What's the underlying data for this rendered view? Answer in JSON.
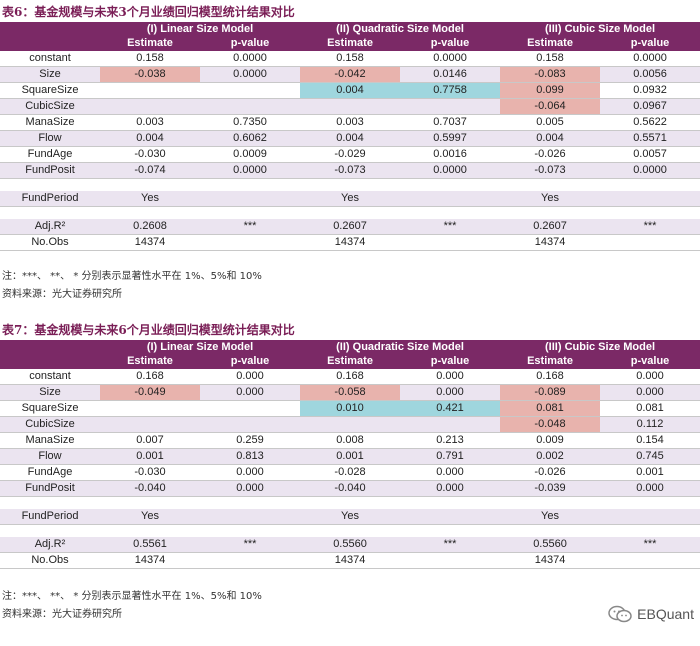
{
  "table6": {
    "title": "表6：基金规模与未来3个月业绩回归模型统计结果对比",
    "headers": [
      "(I) Linear Size Model",
      "(II) Quadratic Size Model",
      "(III) Cubic Size Model"
    ],
    "subheaders": [
      "Estimate",
      "p-value",
      "Estimate",
      "p-value",
      "Estimate",
      "p-value"
    ],
    "rows": [
      {
        "label": "constant",
        "v": [
          "0.158",
          "0.0000",
          "0.158",
          "0.0000",
          "0.158",
          "0.0000"
        ]
      },
      {
        "label": "Size",
        "v": [
          "-0.038",
          "0.0000",
          "-0.042",
          "0.0146",
          "-0.083",
          "0.0056"
        ]
      },
      {
        "label": "SquareSize",
        "v": [
          "",
          "",
          "0.004",
          "0.7758",
          "0.099",
          "0.0932"
        ]
      },
      {
        "label": "CubicSize",
        "v": [
          "",
          "",
          "",
          "",
          "-0.064",
          "0.0967"
        ]
      },
      {
        "label": "ManaSize",
        "v": [
          "0.003",
          "0.7350",
          "0.003",
          "0.7037",
          "0.005",
          "0.5622"
        ]
      },
      {
        "label": "Flow",
        "v": [
          "0.004",
          "0.6062",
          "0.004",
          "0.5997",
          "0.004",
          "0.5571"
        ]
      },
      {
        "label": "FundAge",
        "v": [
          "-0.030",
          "0.0009",
          "-0.029",
          "0.0016",
          "-0.026",
          "0.0057"
        ]
      },
      {
        "label": "FundPosit",
        "v": [
          "-0.074",
          "0.0000",
          "-0.073",
          "0.0000",
          "-0.073",
          "0.0000"
        ]
      }
    ],
    "fundperiod": {
      "label": "FundPeriod",
      "v": [
        "Yes",
        "Yes",
        "Yes"
      ]
    },
    "adjr2": {
      "label": "Adj.R²",
      "v": [
        "0.2608",
        "***",
        "0.2607",
        "***",
        "0.2607",
        "***"
      ]
    },
    "nobs": {
      "label": "No.Obs",
      "v": [
        "14374",
        "14374",
        "14374"
      ]
    },
    "note": "注：***、 **、 * 分别表示显著性水平在 1%、5%和 10%",
    "source": "资料来源：光大证券研究所"
  },
  "table7": {
    "title": "表7：基金规模与未来6个月业绩回归模型统计结果对比",
    "headers": [
      "(I) Linear Size Model",
      "(II) Quadratic Size Model",
      "(III) Cubic Size Model"
    ],
    "subheaders": [
      "Estimate",
      "p-value",
      "Estimate",
      "p-value",
      "Estimate",
      "p-value"
    ],
    "rows": [
      {
        "label": "constant",
        "v": [
          "0.168",
          "0.000",
          "0.168",
          "0.000",
          "0.168",
          "0.000"
        ]
      },
      {
        "label": "Size",
        "v": [
          "-0.049",
          "0.000",
          "-0.058",
          "0.000",
          "-0.089",
          "0.000"
        ]
      },
      {
        "label": "SquareSize",
        "v": [
          "",
          "",
          "0.010",
          "0.421",
          "0.081",
          "0.081"
        ]
      },
      {
        "label": "CubicSize",
        "v": [
          "",
          "",
          "",
          "",
          "-0.048",
          "0.112"
        ]
      },
      {
        "label": "ManaSize",
        "v": [
          "0.007",
          "0.259",
          "0.008",
          "0.213",
          "0.009",
          "0.154"
        ]
      },
      {
        "label": "Flow",
        "v": [
          "0.001",
          "0.813",
          "0.001",
          "0.791",
          "0.002",
          "0.745"
        ]
      },
      {
        "label": "FundAge",
        "v": [
          "-0.030",
          "0.000",
          "-0.028",
          "0.000",
          "-0.026",
          "0.001"
        ]
      },
      {
        "label": "FundPosit",
        "v": [
          "-0.040",
          "0.000",
          "-0.040",
          "0.000",
          "-0.039",
          "0.000"
        ]
      }
    ],
    "fundperiod": {
      "label": "FundPeriod",
      "v": [
        "Yes",
        "Yes",
        "Yes"
      ]
    },
    "adjr2": {
      "label": "Adj.R²",
      "v": [
        "0.5561",
        "***",
        "0.5560",
        "***",
        "0.5560",
        "***"
      ]
    },
    "nobs": {
      "label": "No.Obs",
      "v": [
        "14374",
        "14374",
        "14374"
      ]
    },
    "note": "注：***、 **、 * 分别表示显著性水平在 1%、5%和 10%",
    "source": "资料来源：光大证券研究所"
  },
  "watermark": "EBQuant",
  "colors": {
    "header": "#7b2966",
    "alt_row": "#ebe4f0",
    "highlight_pink": "#e8b3ad",
    "highlight_blue": "#9fd6de"
  }
}
